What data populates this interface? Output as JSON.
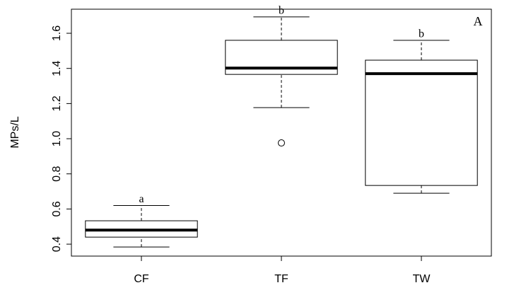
{
  "chart_data": {
    "type": "box",
    "y_label": "MPs/L",
    "annotation": "A",
    "categories": [
      "CF",
      "TF",
      "TW"
    ],
    "boxes": [
      {
        "min": 0.384,
        "q1": 0.44,
        "median": 0.48,
        "q3": 0.533,
        "max": 0.62,
        "label": "a"
      },
      {
        "min": 1.177,
        "q1": 1.366,
        "median": 1.402,
        "q3": 1.56,
        "max": 1.693,
        "outliers": [
          0.976
        ],
        "label": "b"
      },
      {
        "min": 0.69,
        "q1": 0.734,
        "median": 1.37,
        "q3": 1.447,
        "max": 1.56,
        "label": "b"
      }
    ],
    "color": "#000000",
    "ylim": [
      0.332,
      1.737
    ],
    "yticks": [
      0.4,
      0.6,
      0.8,
      {
        "value": 1,
        "label": "1.0"
      },
      1.2,
      1.4,
      1.6
    ]
  }
}
